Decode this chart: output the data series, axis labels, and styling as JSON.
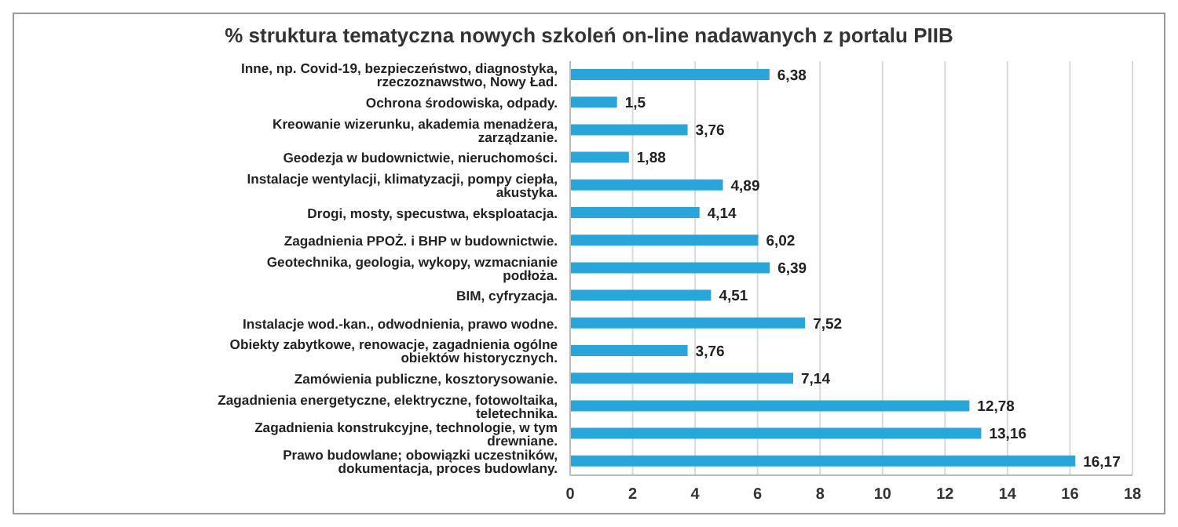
{
  "chart_data": {
    "type": "bar",
    "orientation": "horizontal",
    "title": "% struktura tematyczna nowych szkoleń on-line nadawanych z portalu PIIB",
    "categories": [
      "Inne, np. Covid-19, bezpieczeństwo, diagnostyka, rzeczoznawstwo, Nowy Ład.",
      "Ochrona środowiska, odpady.",
      "Kreowanie wizerunku, akademia menadżera, zarządzanie.",
      "Geodezja w budownictwie, nieruchomości.",
      "Instalacje wentylacji, klimatyzacji, pompy ciepła, akustyka.",
      "Drogi, mosty, specustwa, eksploatacja.",
      "Zagadnienia PPOŻ. i BHP w budownictwie.",
      "Geotechnika, geologia, wykopy, wzmacnianie podłoża.",
      "BIM, cyfryzacja.",
      "Instalacje wod.-kan., odwodnienia, prawo wodne.",
      "Obiekty zabytkowe, renowacje, zagadnienia ogólne obiektów historycznych.",
      "Zamówienia publiczne, kosztorysowanie.",
      "Zagadnienia energetyczne, elektryczne, fotowoltaika, teletechnika.",
      "Zagadnienia konstrukcyjne, technologie, w tym drewniane.",
      "Prawo budowlane; obowiązki uczestników, dokumentacja, proces budowlany."
    ],
    "values": [
      6.38,
      1.5,
      3.76,
      1.88,
      4.89,
      4.14,
      6.02,
      6.39,
      4.51,
      7.52,
      3.76,
      7.14,
      12.78,
      13.16,
      16.17
    ],
    "value_labels": [
      "6,38",
      "1,5",
      "3,76",
      "1,88",
      "4,89",
      "4,14",
      "6,02",
      "6,39",
      "4,51",
      "7,52",
      "3,76",
      "7,14",
      "12,78",
      "13,16",
      "16,17"
    ],
    "color": "#27a6dc",
    "xlim": [
      0,
      18
    ],
    "xticks": [
      0,
      2,
      4,
      6,
      8,
      10,
      12,
      14,
      16,
      18
    ],
    "grid": "x"
  }
}
